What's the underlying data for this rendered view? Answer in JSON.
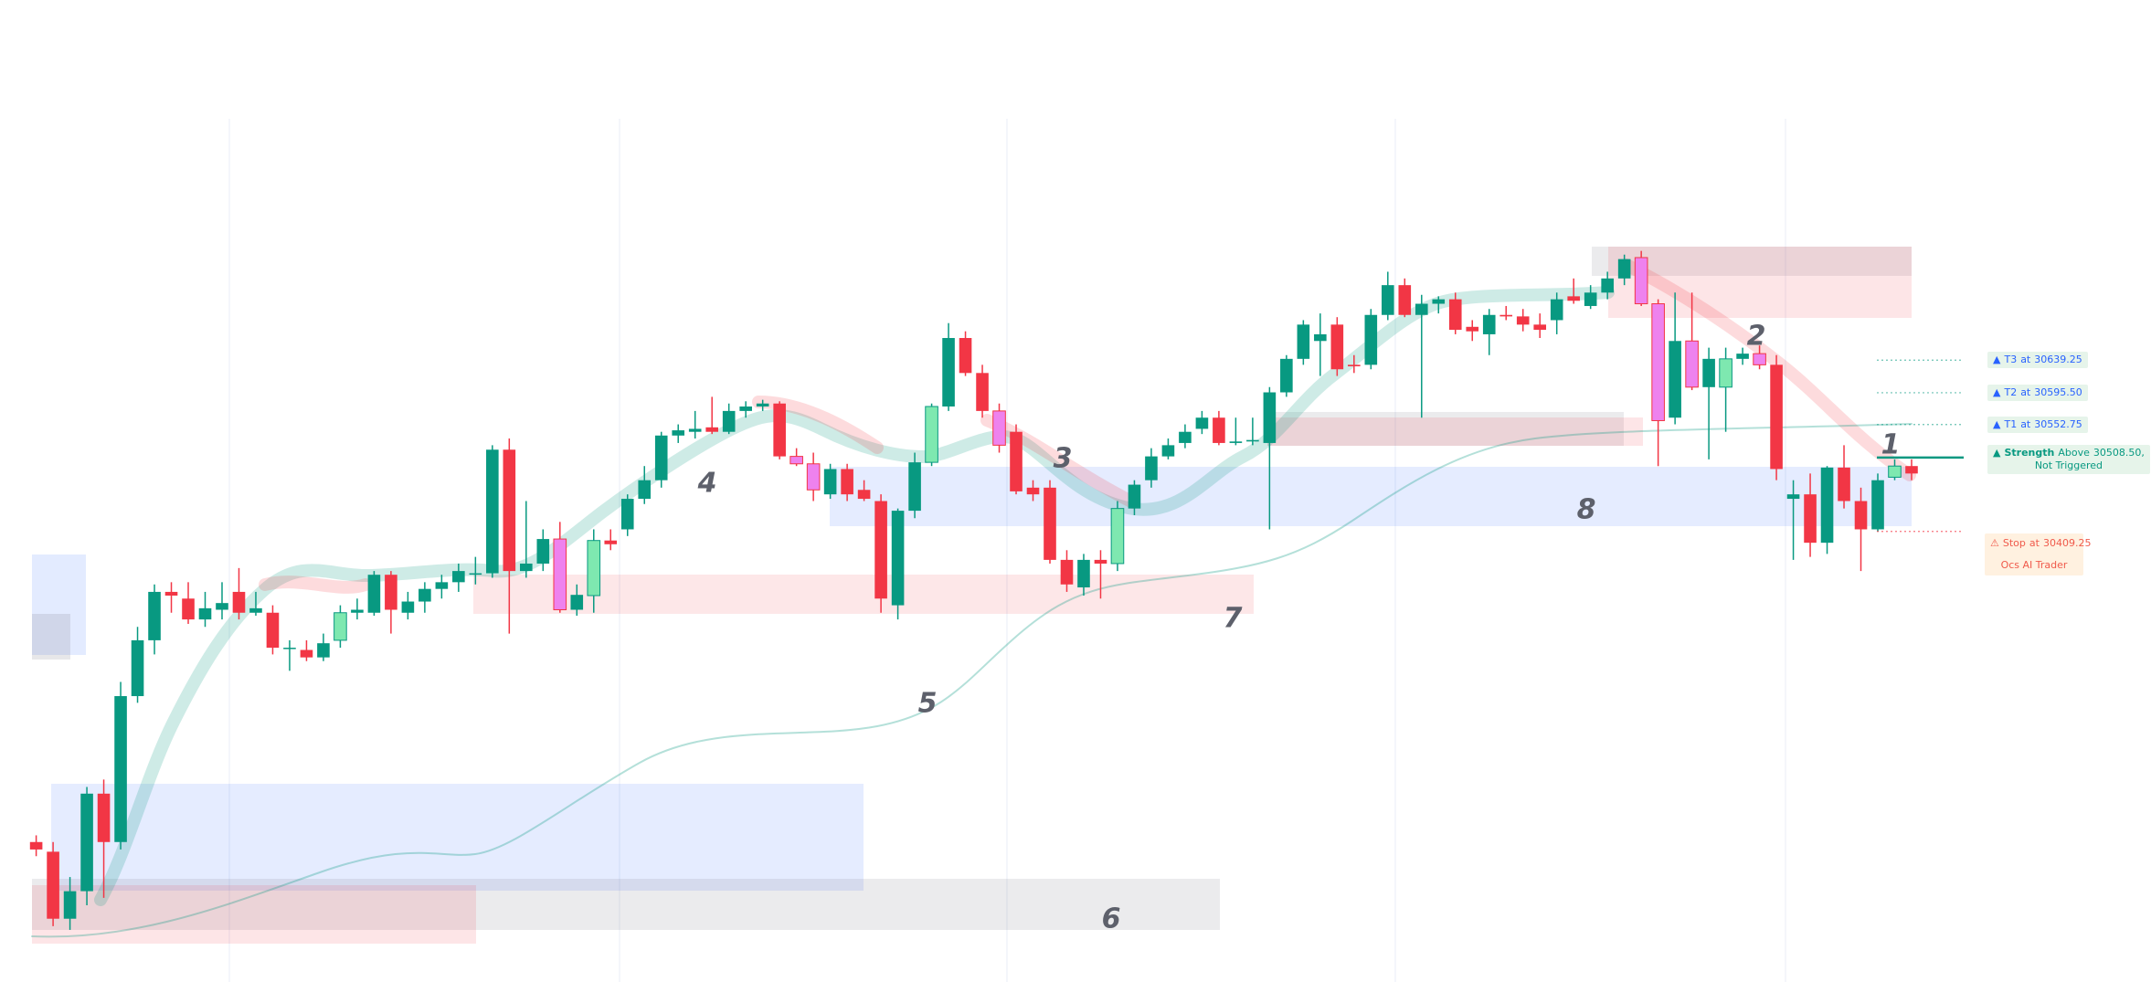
{
  "chart_data": {
    "type": "candlestick",
    "candles": [
      [
        29992,
        30001,
        29973,
        29982
      ],
      [
        29979,
        29992,
        29879,
        29889
      ],
      [
        29889,
        29945,
        29874,
        29926
      ],
      [
        29926,
        30066,
        29907,
        30057
      ],
      [
        30057,
        30076,
        29917,
        29992
      ],
      [
        29992,
        30207,
        29982,
        30188
      ],
      [
        30188,
        30281,
        30179,
        30263
      ],
      [
        30263,
        30338,
        30244,
        30328
      ],
      [
        30328,
        30341,
        30300,
        30323
      ],
      [
        30319,
        30341,
        30285,
        30291
      ],
      [
        30291,
        30328,
        30281,
        30306
      ],
      [
        30304,
        30341,
        30291,
        30313
      ],
      [
        30328,
        30360,
        30291,
        30300
      ],
      [
        30300,
        30328,
        30296,
        30306
      ],
      [
        30300,
        30310,
        30244,
        30253
      ],
      [
        30253,
        30263,
        30222,
        30253
      ],
      [
        30250,
        30263,
        30235,
        30240
      ],
      [
        30240,
        30272,
        30235,
        30259
      ],
      [
        30263,
        30310,
        30253,
        30300
      ],
      [
        30300,
        30319,
        30291,
        30304
      ],
      [
        30300,
        30356,
        30296,
        30351
      ],
      [
        30351,
        30356,
        30272,
        30304
      ],
      [
        30300,
        30328,
        30291,
        30315
      ],
      [
        30315,
        30341,
        30300,
        30332
      ],
      [
        30332,
        30351,
        30319,
        30341
      ],
      [
        30341,
        30366,
        30328,
        30356
      ],
      [
        30353,
        30375,
        30338,
        30353
      ],
      [
        30353,
        30525,
        30347,
        30519
      ],
      [
        30519,
        30534,
        30272,
        30356
      ],
      [
        30356,
        30450,
        30347,
        30366
      ],
      [
        30366,
        30412,
        30356,
        30399
      ],
      [
        30399,
        30422,
        30300,
        30304
      ],
      [
        30304,
        30338,
        30296,
        30324
      ],
      [
        30323,
        30412,
        30300,
        30397
      ],
      [
        30397,
        30412,
        30384,
        30392
      ],
      [
        30412,
        30459,
        30403,
        30453
      ],
      [
        30453,
        30497,
        30446,
        30478
      ],
      [
        30478,
        30543,
        30468,
        30538
      ],
      [
        30538,
        30553,
        30528,
        30545
      ],
      [
        30543,
        30571,
        30534,
        30547
      ],
      [
        30549,
        30590,
        30540,
        30543
      ],
      [
        30543,
        30581,
        30540,
        30571
      ],
      [
        30571,
        30584,
        30562,
        30577
      ],
      [
        30577,
        30586,
        30571,
        30581
      ],
      [
        30581,
        30584,
        30506,
        30510
      ],
      [
        30510,
        30521,
        30497,
        30500
      ],
      [
        30500,
        30515,
        30450,
        30465
      ],
      [
        30459,
        30500,
        30453,
        30493
      ],
      [
        30493,
        30500,
        30450,
        30459
      ],
      [
        30465,
        30478,
        30450,
        30453
      ],
      [
        30450,
        30459,
        30300,
        30319
      ],
      [
        30310,
        30440,
        30291,
        30437
      ],
      [
        30437,
        30515,
        30427,
        30502
      ],
      [
        30502,
        30581,
        30497,
        30577
      ],
      [
        30577,
        30689,
        30571,
        30669
      ],
      [
        30669,
        30678,
        30618,
        30622
      ],
      [
        30622,
        30633,
        30562,
        30571
      ],
      [
        30571,
        30581,
        30515,
        30525
      ],
      [
        30543,
        30553,
        30459,
        30463
      ],
      [
        30468,
        30478,
        30450,
        30459
      ],
      [
        30468,
        30478,
        30366,
        30371
      ],
      [
        30371,
        30384,
        30328,
        30338
      ],
      [
        30334,
        30379,
        30323,
        30371
      ],
      [
        30371,
        30384,
        30319,
        30366
      ],
      [
        30366,
        30450,
        30356,
        30440
      ],
      [
        30440,
        30478,
        30431,
        30472
      ],
      [
        30478,
        30521,
        30468,
        30510
      ],
      [
        30510,
        30534,
        30506,
        30525
      ],
      [
        30528,
        30553,
        30521,
        30543
      ],
      [
        30547,
        30571,
        30540,
        30562
      ],
      [
        30562,
        30571,
        30525,
        30528
      ],
      [
        30528,
        30562,
        30525,
        30530
      ],
      [
        30530,
        30562,
        30525,
        30532
      ],
      [
        30528,
        30603,
        30412,
        30596
      ],
      [
        30596,
        30646,
        30590,
        30641
      ],
      [
        30641,
        30693,
        30633,
        30687
      ],
      [
        30665,
        30702,
        30618,
        30674
      ],
      [
        30687,
        30697,
        30618,
        30627
      ],
      [
        30633,
        30646,
        30622,
        30631
      ],
      [
        30633,
        30708,
        30627,
        30700
      ],
      [
        30700,
        30758,
        30693,
        30740
      ],
      [
        30740,
        30749,
        30697,
        30700
      ],
      [
        30700,
        30727,
        30562,
        30715
      ],
      [
        30715,
        30725,
        30702,
        30721
      ],
      [
        30721,
        30730,
        30674,
        30680
      ],
      [
        30684,
        30693,
        30665,
        30678
      ],
      [
        30674,
        30708,
        30646,
        30700
      ],
      [
        30700,
        30712,
        30693,
        30698
      ],
      [
        30698,
        30708,
        30678,
        30687
      ],
      [
        30687,
        30702,
        30669,
        30680
      ],
      [
        30693,
        30730,
        30674,
        30721
      ],
      [
        30725,
        30749,
        30715,
        30719
      ],
      [
        30712,
        30740,
        30708,
        30730
      ],
      [
        30730,
        30758,
        30721,
        30749
      ],
      [
        30749,
        30781,
        30740,
        30775
      ],
      [
        30777,
        30786,
        30712,
        30715
      ],
      [
        30715,
        30721,
        30497,
        30558
      ],
      [
        30562,
        30730,
        30553,
        30665
      ],
      [
        30665,
        30730,
        30599,
        30603
      ],
      [
        30603,
        30656,
        30506,
        30641
      ],
      [
        30603,
        30656,
        30543,
        30641
      ],
      [
        30641,
        30656,
        30633,
        30648
      ],
      [
        30648,
        30659,
        30627,
        30633
      ],
      [
        30633,
        30646,
        30478,
        30493
      ],
      [
        30453,
        30478,
        30371,
        30459
      ],
      [
        30459,
        30487,
        30375,
        30394
      ],
      [
        30394,
        30497,
        30379,
        30495
      ],
      [
        30495,
        30525,
        30440,
        30450
      ],
      [
        30450,
        30468,
        30356,
        30412
      ],
      [
        30412,
        30487,
        30409,
        30478
      ],
      [
        30482,
        30506,
        30478,
        30497
      ],
      [
        30497,
        30506,
        30478,
        30487
      ]
    ],
    "up_color": "#089981",
    "down_color": "#f23645",
    "up_highlight_color": "#7ee8b0",
    "down_highlight_color": "#ee82ee",
    "highlighted": [
      18,
      31,
      33,
      45,
      46,
      53,
      57,
      64,
      95,
      96,
      98,
      100,
      102,
      110
    ],
    "ylim": [
      29804,
      31123
    ],
    "levels": [
      {
        "icon": "▲",
        "name": "T3",
        "prefix": "at",
        "value": 30639.25,
        "value_label": "30639.25"
      },
      {
        "icon": "▲",
        "name": "T2",
        "prefix": "at",
        "value": 30595.5,
        "value_label": "30595.50"
      },
      {
        "icon": "▲",
        "name": "T1",
        "prefix": "at",
        "value": 30552.75,
        "value_label": "30552.75"
      }
    ],
    "strength": {
      "icon": "▲",
      "name": "Strength",
      "prefix": "Above",
      "value": 30508.5,
      "value_label": "30508.50",
      "suffix": ",",
      "note": "Not Triggered"
    },
    "stop": {
      "icon": "⚠",
      "name": "Stop",
      "prefix": "at",
      "value": 30409.25,
      "value_label": "30409.25",
      "brand": "Ocs AI Trader"
    },
    "annotations": [
      "1",
      "2",
      "3",
      "4",
      "5",
      "6",
      "7",
      "8"
    ]
  }
}
